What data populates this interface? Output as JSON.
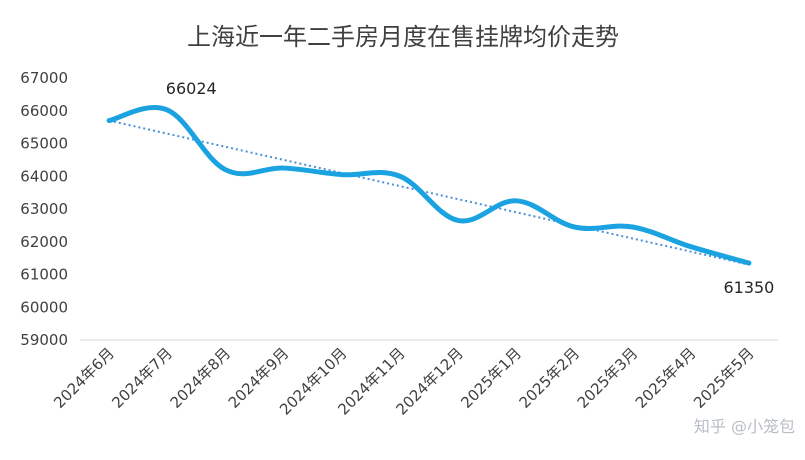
{
  "chart_data": {
    "type": "line",
    "title": "上海近一年二手房月度在售挂牌均价走势",
    "xlabel": "",
    "ylabel": "",
    "categories": [
      "2024年6月",
      "2024年7月",
      "2024年8月",
      "2024年9月",
      "2024年10月",
      "2024年11月",
      "2024年12月",
      "2025年1月",
      "2025年2月",
      "2025年3月",
      "2025年4月",
      "2025年5月"
    ],
    "series": [
      {
        "values": [
          65700,
          66024,
          64200,
          64250,
          64050,
          64000,
          62650,
          63250,
          62450,
          62450,
          61850,
          61350
        ],
        "color": "#1aa3e0"
      }
    ],
    "trendline": {
      "style": "dotted",
      "color": "#4a90d9",
      "start": 65700,
      "end": 61300
    },
    "ylim": [
      59000,
      67000
    ],
    "yticks": [
      59000,
      60000,
      61000,
      62000,
      63000,
      64000,
      65000,
      66000,
      67000
    ],
    "grid": false,
    "legend": "none",
    "data_labels": [
      {
        "index": 1,
        "text": "66024"
      },
      {
        "index": 11,
        "text": "61350"
      }
    ]
  },
  "watermark": "知乎 @小笼包"
}
